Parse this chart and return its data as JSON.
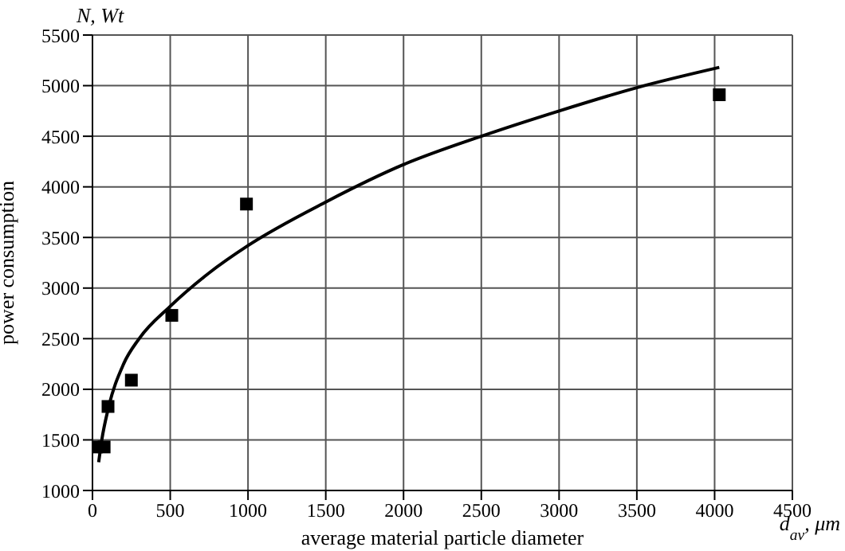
{
  "chart_data": {
    "type": "scatter",
    "xlabel": "average material particle diameter",
    "ylabel": "power consumption",
    "annotations": [
      "N, Wt",
      "d$_{av}$, μm"
    ],
    "xlim": [
      0,
      4500
    ],
    "xticks": [
      0,
      500,
      1000,
      1500,
      2000,
      2500,
      3000,
      3500,
      4000,
      4500
    ],
    "ylim": [
      1000,
      5500
    ],
    "yticks": [
      1000,
      1500,
      2000,
      2500,
      3000,
      3500,
      4000,
      4500,
      5000,
      5500
    ],
    "grid": true,
    "legend": false,
    "series": [
      {
        "color": "#000000",
        "marker": "square",
        "x": [
          25,
          75,
          100,
          250,
          510,
          990,
          4030
        ],
        "values": [
          1430,
          1430,
          1830,
          2090,
          2730,
          3830,
          4910
        ]
      },
      {
        "type": "line",
        "color": "#000000",
        "marker": "none",
        "line_style": "solid",
        "x": [
          40,
          60,
          100,
          200,
          300,
          500,
          750,
          1000,
          1500,
          2000,
          2500,
          3000,
          3500,
          4030
        ],
        "values": [
          1280,
          1500,
          1800,
          2250,
          2500,
          2820,
          3150,
          3420,
          3850,
          4220,
          4500,
          4750,
          4980,
          5180
        ]
      }
    ]
  }
}
